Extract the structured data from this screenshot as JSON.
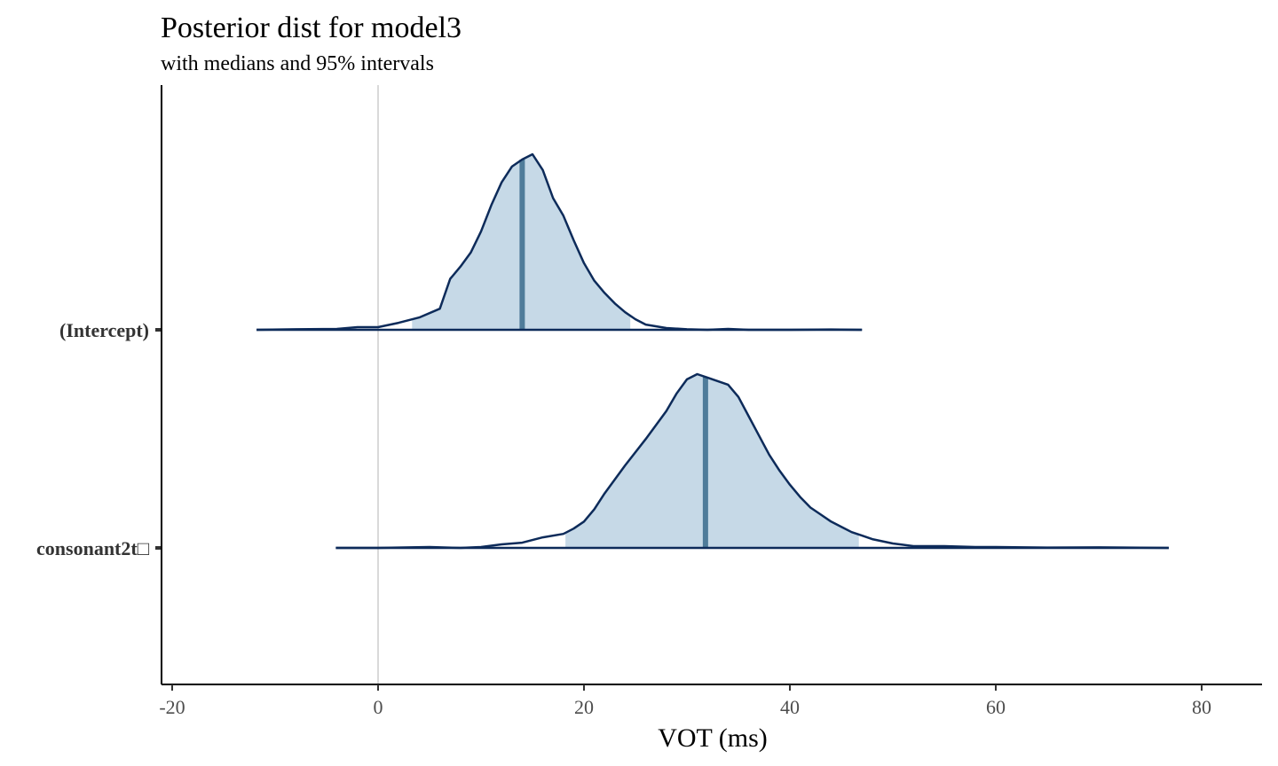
{
  "chart_data": {
    "type": "ridgeline",
    "title": "Posterior dist for model3",
    "subtitle": "with medians and 95% intervals",
    "xlabel": "VOT (ms)",
    "ylabel": "",
    "xlim": [
      -21,
      86
    ],
    "x_ticks": [
      -20,
      0,
      20,
      40,
      60,
      80
    ],
    "x_tick_labels": [
      "-20",
      "0",
      "20",
      "40",
      "60",
      "80"
    ],
    "reference_line_x": 0,
    "grid": false,
    "legend": "none",
    "colors": {
      "line": "#0d2b5a",
      "fill": "#c6d9e7",
      "median": "#4f7c9a",
      "reference": "#d9d9d9",
      "axis": "#000000"
    },
    "series": [
      {
        "name": "(Intercept)",
        "median": 14,
        "interval_95": [
          3.3,
          24.5
        ],
        "range": [
          -11.8,
          47
        ],
        "density": [
          [
            -11.8,
            0.0
          ],
          [
            -8,
            0.003
          ],
          [
            -4,
            0.005
          ],
          [
            -2,
            0.015
          ],
          [
            0,
            0.015
          ],
          [
            2,
            0.04
          ],
          [
            4,
            0.07
          ],
          [
            6,
            0.12
          ],
          [
            7,
            0.29
          ],
          [
            8,
            0.36
          ],
          [
            9,
            0.44
          ],
          [
            10,
            0.56
          ],
          [
            11,
            0.71
          ],
          [
            12,
            0.84
          ],
          [
            13,
            0.93
          ],
          [
            14,
            0.97
          ],
          [
            15,
            1.0
          ],
          [
            16,
            0.91
          ],
          [
            17,
            0.75
          ],
          [
            18,
            0.65
          ],
          [
            19,
            0.51
          ],
          [
            20,
            0.38
          ],
          [
            21,
            0.28
          ],
          [
            22,
            0.21
          ],
          [
            23,
            0.15
          ],
          [
            24,
            0.1
          ],
          [
            25,
            0.06
          ],
          [
            26,
            0.03
          ],
          [
            28,
            0.01
          ],
          [
            30,
            0.003
          ],
          [
            32,
            0.0
          ],
          [
            34,
            0.005
          ],
          [
            36,
            0.0
          ],
          [
            40,
            0.0
          ],
          [
            44,
            0.002
          ],
          [
            47,
            0.0
          ]
        ]
      },
      {
        "name": "consonant2t□",
        "median": 31.8,
        "interval_95": [
          18.2,
          46.7
        ],
        "range": [
          -4.1,
          76.8
        ],
        "density": [
          [
            -4.1,
            0.0
          ],
          [
            0,
            0.0
          ],
          [
            5,
            0.005
          ],
          [
            8,
            0.0
          ],
          [
            10,
            0.005
          ],
          [
            12,
            0.02
          ],
          [
            14,
            0.03
          ],
          [
            16,
            0.06
          ],
          [
            18,
            0.08
          ],
          [
            19,
            0.11
          ],
          [
            20,
            0.15
          ],
          [
            21,
            0.22
          ],
          [
            22,
            0.31
          ],
          [
            24,
            0.47
          ],
          [
            26,
            0.62
          ],
          [
            28,
            0.78
          ],
          [
            29,
            0.88
          ],
          [
            30,
            0.96
          ],
          [
            31,
            0.99
          ],
          [
            32,
            0.97
          ],
          [
            33,
            0.95
          ],
          [
            34,
            0.93
          ],
          [
            35,
            0.86
          ],
          [
            36,
            0.75
          ],
          [
            37,
            0.64
          ],
          [
            38,
            0.53
          ],
          [
            39,
            0.44
          ],
          [
            40,
            0.36
          ],
          [
            41,
            0.29
          ],
          [
            42,
            0.23
          ],
          [
            43,
            0.19
          ],
          [
            44,
            0.15
          ],
          [
            45,
            0.12
          ],
          [
            46,
            0.09
          ],
          [
            47,
            0.07
          ],
          [
            48,
            0.05
          ],
          [
            50,
            0.025
          ],
          [
            52,
            0.01
          ],
          [
            55,
            0.01
          ],
          [
            58,
            0.005
          ],
          [
            60,
            0.005
          ],
          [
            65,
            0.002
          ],
          [
            70,
            0.003
          ],
          [
            76.8,
            0.0
          ]
        ]
      }
    ]
  }
}
